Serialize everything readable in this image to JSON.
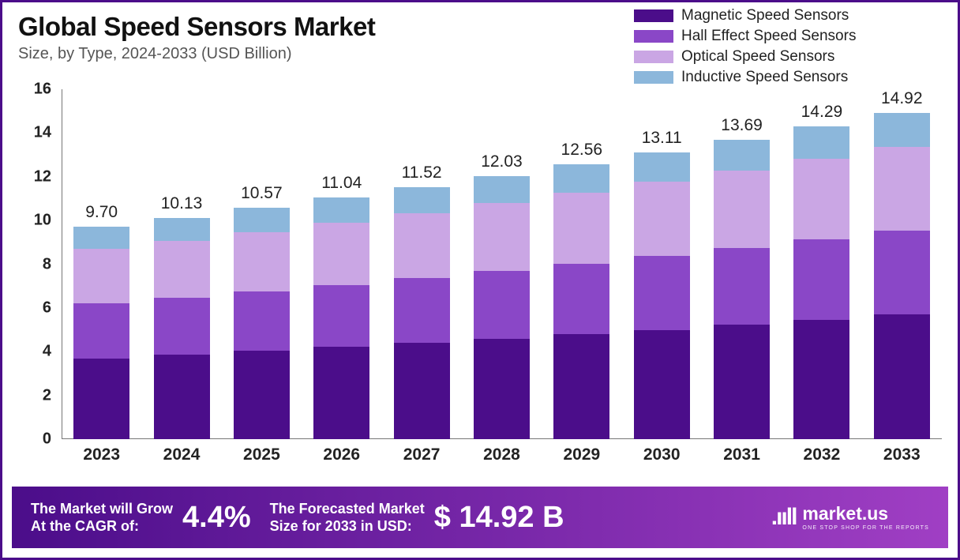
{
  "title": "Global Speed Sensors Market",
  "subtitle": "Size, by Type, 2024-2033 (USD Billion)",
  "chart": {
    "type": "stacked-bar",
    "ylim": [
      0,
      16
    ],
    "ytick_step": 2,
    "yticks": [
      "0",
      "2",
      "4",
      "6",
      "8",
      "10",
      "12",
      "14",
      "16"
    ],
    "categories": [
      "2023",
      "2024",
      "2025",
      "2026",
      "2027",
      "2028",
      "2029",
      "2030",
      "2031",
      "2032",
      "2033"
    ],
    "totals": [
      "9.70",
      "10.13",
      "10.57",
      "11.04",
      "11.52",
      "12.03",
      "12.56",
      "13.11",
      "13.69",
      "14.29",
      "14.92"
    ],
    "series": [
      {
        "name": "Magnetic Speed Sensors",
        "color": "#4b0d8a"
      },
      {
        "name": "Hall Effect Speed Sensors",
        "color": "#8a47c7"
      },
      {
        "name": "Optical Speed Sensors",
        "color": "#caa6e4"
      },
      {
        "name": "Inductive Speed Sensors",
        "color": "#8cb7db"
      }
    ],
    "stacks": [
      [
        3.7,
        2.5,
        2.5,
        1.0
      ],
      [
        3.86,
        2.61,
        2.61,
        1.05
      ],
      [
        4.03,
        2.72,
        2.72,
        1.1
      ],
      [
        4.21,
        2.84,
        2.84,
        1.15
      ],
      [
        4.39,
        2.97,
        2.97,
        1.19
      ],
      [
        4.59,
        3.1,
        3.1,
        1.24
      ],
      [
        4.79,
        3.24,
        3.24,
        1.29
      ],
      [
        5.0,
        3.38,
        3.38,
        1.35
      ],
      [
        5.22,
        3.53,
        3.53,
        1.41
      ],
      [
        5.45,
        3.68,
        3.68,
        1.48
      ],
      [
        5.69,
        3.84,
        3.84,
        1.55
      ]
    ],
    "background_color": "#ffffff",
    "axis_color": "#777777",
    "label_fontsize": 21,
    "tick_fontsize": 20,
    "bar_width_pct": 70
  },
  "footer": {
    "text1a": "The Market will Grow",
    "text1b": "At the CAGR of:",
    "cagr": "4.4%",
    "text2a": "The Forecasted Market",
    "text2b": "Size for 2033 in USD:",
    "forecast": "$ 14.92 B",
    "logo_mark": ".ııll",
    "logo_main": "market.us",
    "logo_sub": "ONE STOP SHOP FOR THE REPORTS",
    "gradient_from": "#4b0d8a",
    "gradient_to": "#a03fc4"
  },
  "border_color": "#4b0d8a"
}
